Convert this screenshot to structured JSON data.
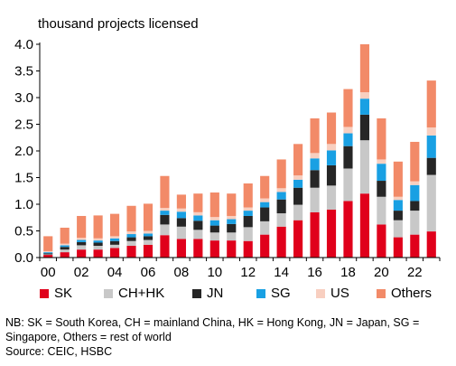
{
  "chart_data": {
    "type": "bar",
    "stacked": true,
    "ylabel": "thousand projects licensed",
    "ylim": [
      0,
      4.0
    ],
    "yticks": [
      "0.0",
      "0.5",
      "1.0",
      "1.5",
      "2.0",
      "2.5",
      "3.0",
      "3.5",
      "4.0"
    ],
    "xtick_labels": [
      "00",
      "02",
      "04",
      "06",
      "08",
      "10",
      "12",
      "14",
      "16",
      "18",
      "20",
      "22"
    ],
    "categories": [
      "2000",
      "2001",
      "2002",
      "2003",
      "2004",
      "2005",
      "2006",
      "2007",
      "2008",
      "2009",
      "2010",
      "2011",
      "2012",
      "2013",
      "2014",
      "2015",
      "2016",
      "2017",
      "2018",
      "2019",
      "2020",
      "2021",
      "2022",
      "2023"
    ],
    "series": [
      {
        "name": "SK",
        "color": "#e0001b",
        "values": [
          0.05,
          0.1,
          0.15,
          0.15,
          0.18,
          0.22,
          0.24,
          0.42,
          0.35,
          0.35,
          0.32,
          0.32,
          0.31,
          0.43,
          0.58,
          0.7,
          0.85,
          0.9,
          1.06,
          1.2,
          0.62,
          0.38,
          0.43,
          0.49
        ]
      },
      {
        "name": "CH+HK",
        "color": "#c8c8c8",
        "values": [
          0.01,
          0.05,
          0.08,
          0.07,
          0.06,
          0.09,
          0.09,
          0.2,
          0.23,
          0.17,
          0.15,
          0.15,
          0.26,
          0.25,
          0.25,
          0.29,
          0.46,
          0.45,
          0.61,
          1.0,
          0.52,
          0.32,
          0.45,
          1.06
        ]
      },
      {
        "name": "JN",
        "color": "#262626",
        "values": [
          0.02,
          0.05,
          0.06,
          0.06,
          0.07,
          0.07,
          0.07,
          0.18,
          0.16,
          0.17,
          0.13,
          0.16,
          0.21,
          0.26,
          0.26,
          0.32,
          0.33,
          0.38,
          0.42,
          0.48,
          0.3,
          0.18,
          0.18,
          0.32
        ]
      },
      {
        "name": "SG",
        "color": "#19a0e3",
        "values": [
          0.02,
          0.03,
          0.04,
          0.04,
          0.05,
          0.06,
          0.05,
          0.08,
          0.12,
          0.1,
          0.1,
          0.09,
          0.1,
          0.1,
          0.14,
          0.15,
          0.22,
          0.28,
          0.24,
          0.3,
          0.32,
          0.2,
          0.3,
          0.42
        ]
      },
      {
        "name": "US",
        "color": "#f8cfc0",
        "values": [
          0.02,
          0.03,
          0.04,
          0.04,
          0.04,
          0.05,
          0.05,
          0.05,
          0.06,
          0.06,
          0.06,
          0.06,
          0.06,
          0.07,
          0.07,
          0.08,
          0.1,
          0.12,
          0.12,
          0.12,
          0.08,
          0.06,
          0.07,
          0.15
        ]
      },
      {
        "name": "Others",
        "color": "#f28a68",
        "values": [
          0.28,
          0.3,
          0.41,
          0.43,
          0.42,
          0.48,
          0.51,
          0.6,
          0.26,
          0.35,
          0.46,
          0.42,
          0.45,
          0.42,
          0.54,
          0.59,
          0.65,
          0.59,
          0.71,
          0.9,
          0.77,
          0.66,
          0.74,
          0.88
        ]
      }
    ],
    "legend_position": "bottom",
    "grid": false
  },
  "note": "NB: SK = South Korea, CH = mainland China, HK = Hong Kong, JN = Japan, SG = Singapore, Others = rest of world",
  "source": "Source: CEIC, HSBC"
}
